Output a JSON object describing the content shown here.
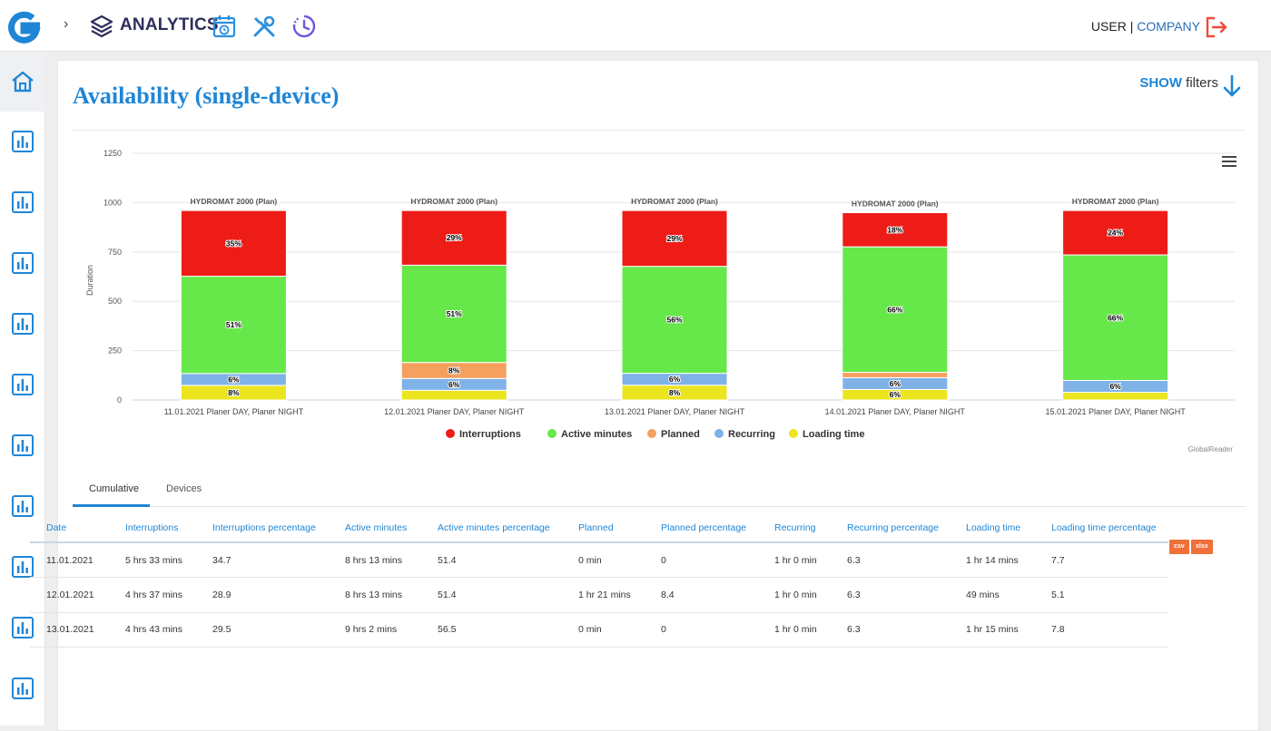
{
  "topbar": {
    "section_title": "ANALYTICS",
    "user": "USER",
    "separator": "|",
    "company": "COMPANY"
  },
  "page": {
    "title": "Availability (single-device)",
    "show_label": "SHOW",
    "filters_label": "filters"
  },
  "chart_data": {
    "type": "bar",
    "stacked": true,
    "ylabel": "Duration",
    "ylim": [
      0,
      1250
    ],
    "yticks": [
      0,
      250,
      500,
      750,
      1000,
      1250
    ],
    "grid": true,
    "legend_position": "bottom",
    "categories": [
      "11.01.2021 Planer DAY, Planer NIGHT",
      "12.01.2021 Planer DAY, Planer NIGHT",
      "13.01.2021 Planer DAY, Planer NIGHT",
      "14.01.2021 Planer DAY, Planer NIGHT",
      "15.01.2021 Planer DAY, Planer NIGHT"
    ],
    "stack_labels": [
      "HYDROMAT 2000 (Plan)",
      "HYDROMAT 2000 (Plan)",
      "HYDROMAT 2000 (Plan)",
      "HYDROMAT 2000 (Plan)",
      "HYDROMAT 2000 (Plan)"
    ],
    "series": [
      {
        "name": "Loading time",
        "color": "#ebe51f",
        "values": [
          74,
          49,
          75,
          53,
          39
        ],
        "labels": [
          "8%",
          "",
          "8%",
          "6%",
          ""
        ]
      },
      {
        "name": "Recurring",
        "color": "#7fb2e7",
        "values": [
          60,
          60,
          60,
          60,
          60
        ],
        "labels": [
          "6%",
          "6%",
          "6%",
          "6%",
          "6%"
        ]
      },
      {
        "name": "Planned",
        "color": "#f5a05f",
        "values": [
          0,
          81,
          0,
          27,
          0
        ],
        "labels": [
          "",
          "8%",
          "",
          "",
          ""
        ]
      },
      {
        "name": "Active minutes",
        "color": "#66e84a",
        "values": [
          493,
          493,
          542,
          636,
          636
        ],
        "labels": [
          "51%",
          "51%",
          "56%",
          "66%",
          "66%"
        ]
      },
      {
        "name": "Interruptions",
        "color": "#ee1c17",
        "values": [
          333,
          277,
          283,
          173,
          225
        ],
        "labels": [
          "35%",
          "29%",
          "29%",
          "18%",
          "24%"
        ]
      }
    ],
    "credit": "GlobalReader"
  },
  "tabs": [
    {
      "label": "Cumulative"
    },
    {
      "label": "Devices"
    }
  ],
  "export": {
    "csv": "csv",
    "xlsx": "xlsx"
  },
  "table": {
    "columns": [
      "Date",
      "Interruptions",
      "Interruptions percentage",
      "Active minutes",
      "Active minutes percentage",
      "Planned",
      "Planned percentage",
      "Recurring",
      "Recurring percentage",
      "Loading time",
      "Loading time percentage"
    ],
    "rows": [
      [
        "11.01.2021",
        "5 hrs 33 mins",
        "34.7",
        "8 hrs 13 mins",
        "51.4",
        "0 min",
        "0",
        "1 hr 0 min",
        "6.3",
        "1 hr 14 mins",
        "7.7"
      ],
      [
        "12.01.2021",
        "4 hrs 37 mins",
        "28.9",
        "8 hrs 13 mins",
        "51.4",
        "1 hr 21 mins",
        "8.4",
        "1 hr 0 min",
        "6.3",
        "49 mins",
        "5.1"
      ],
      [
        "13.01.2021",
        "4 hrs 43 mins",
        "29.5",
        "9 hrs 2 mins",
        "56.5",
        "0 min",
        "0",
        "1 hr 0 min",
        "6.3",
        "1 hr 15 mins",
        "7.8"
      ]
    ]
  }
}
